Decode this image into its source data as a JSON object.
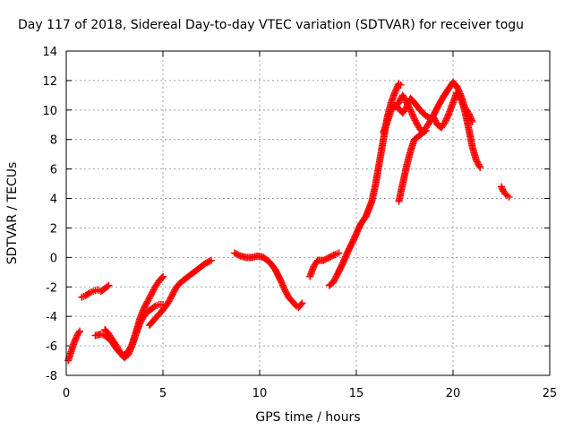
{
  "chart_data": {
    "type": "scatter",
    "title": "Day 117 of 2018, Sidereal Day-to-day VTEC variation (SDTVAR) for receiver togu",
    "xlabel": "GPS time / hours",
    "ylabel": "SDTVAR / TECUs",
    "xlim": [
      0,
      25
    ],
    "ylim": [
      -8,
      14
    ],
    "xticks": [
      "0",
      "5",
      "10",
      "15",
      "20",
      "25"
    ],
    "yticks": [
      "-8",
      "-6",
      "-4",
      "-2",
      "0",
      "2",
      "4",
      "6",
      "8",
      "10",
      "12",
      "14"
    ],
    "grid": true,
    "legend": "none",
    "marker": "+",
    "color": "#ff0000",
    "series": [
      {
        "x": [
          0.1,
          0.2,
          0.3,
          0.4,
          0.5,
          0.6,
          0.7
        ],
        "y": [
          -7.0,
          -6.6,
          -6.2,
          -5.8,
          -5.5,
          -5.2,
          -5.0
        ]
      },
      {
        "x": [
          0.8,
          1.0,
          1.2,
          1.4,
          1.6,
          1.8,
          2.0,
          2.2
        ],
        "y": [
          -2.7,
          -2.6,
          -2.4,
          -2.3,
          -2.2,
          -2.3,
          -2.1,
          -1.9
        ]
      },
      {
        "x": [
          1.5,
          1.8,
          2.0,
          2.2,
          2.4,
          2.6,
          2.8,
          3.0,
          3.2,
          3.4,
          3.6,
          3.8,
          4.0,
          4.2,
          4.4,
          4.6,
          4.8,
          5.0
        ],
        "y": [
          -5.3,
          -5.2,
          -5.3,
          -5.5,
          -5.8,
          -6.2,
          -6.5,
          -6.6,
          -6.4,
          -5.9,
          -5.1,
          -4.2,
          -3.5,
          -3.0,
          -2.5,
          -2.0,
          -1.6,
          -1.3
        ]
      },
      {
        "x": [
          2.0,
          2.2,
          2.4,
          2.6,
          2.8,
          3.0,
          3.2,
          3.4,
          3.6,
          3.8,
          4.0,
          4.2,
          4.4,
          4.6,
          4.8,
          5.0
        ],
        "y": [
          -4.9,
          -5.2,
          -5.6,
          -6.0,
          -6.5,
          -6.8,
          -6.6,
          -6.0,
          -5.2,
          -4.5,
          -4.0,
          -3.7,
          -3.5,
          -3.3,
          -3.2,
          -3.2
        ]
      },
      {
        "x": [
          4.3,
          4.5,
          4.7,
          4.9,
          5.1,
          5.3,
          5.5,
          5.7,
          6.0,
          6.3,
          6.6,
          6.9,
          7.2,
          7.5
        ],
        "y": [
          -4.6,
          -4.3,
          -4.0,
          -3.7,
          -3.4,
          -3.0,
          -2.5,
          -2.0,
          -1.6,
          -1.3,
          -1.0,
          -0.7,
          -0.4,
          -0.2
        ]
      },
      {
        "x": [
          8.7,
          9.0,
          9.3,
          9.6,
          9.9,
          10.2,
          10.5,
          10.8,
          11.1,
          11.3,
          11.5,
          11.7,
          11.9,
          12.0,
          12.2
        ],
        "y": [
          0.3,
          0.1,
          0.0,
          0.0,
          0.1,
          0.0,
          -0.3,
          -0.8,
          -1.6,
          -2.2,
          -2.7,
          -3.0,
          -3.3,
          -3.4,
          -3.1
        ]
      },
      {
        "x": [
          12.6,
          12.8,
          13.0,
          13.3,
          13.6,
          13.9,
          14.1
        ],
        "y": [
          -1.3,
          -0.6,
          -0.2,
          -0.2,
          0.0,
          0.2,
          0.3
        ]
      },
      {
        "x": [
          13.6,
          13.8,
          14.0,
          14.3,
          14.6,
          14.9,
          15.2,
          15.5,
          15.8,
          16.0,
          16.2,
          16.4,
          16.6,
          16.8,
          17.0,
          17.2,
          17.3
        ],
        "y": [
          -1.9,
          -1.7,
          -1.2,
          -0.4,
          0.5,
          1.3,
          2.2,
          2.8,
          3.8,
          5.0,
          6.5,
          8.0,
          9.5,
          10.5,
          11.2,
          11.8,
          11.7
        ]
      },
      {
        "x": [
          16.4,
          16.6,
          16.8,
          17.0,
          17.2,
          17.4,
          17.6,
          17.8,
          18.0,
          18.3,
          18.6,
          18.9,
          19.2,
          19.5,
          19.8,
          20.0,
          20.2,
          20.4,
          20.6,
          20.8,
          21.0
        ],
        "y": [
          8.5,
          9.2,
          10.0,
          10.3,
          10.1,
          9.8,
          10.2,
          10.8,
          10.5,
          10.0,
          9.6,
          9.4,
          10.2,
          10.9,
          11.5,
          11.9,
          11.6,
          11.0,
          10.2,
          9.8,
          9.2
        ]
      },
      {
        "x": [
          17.0,
          17.2,
          17.4,
          17.6,
          17.8,
          18.0,
          18.2,
          18.4,
          18.6,
          18.8,
          19.0,
          19.2,
          19.4,
          19.6,
          19.8,
          20.0,
          20.2,
          20.4,
          20.6,
          20.8,
          21.0,
          21.2,
          21.4
        ],
        "y": [
          10.2,
          10.5,
          11.0,
          10.5,
          10.0,
          9.4,
          8.9,
          8.5,
          8.8,
          9.2,
          9.5,
          9.0,
          8.8,
          9.2,
          9.8,
          10.5,
          11.2,
          10.8,
          10.0,
          8.8,
          7.5,
          6.6,
          6.1
        ]
      },
      {
        "x": [
          17.2,
          17.4,
          17.6,
          17.8,
          18.0,
          18.2,
          18.4,
          18.6
        ],
        "y": [
          3.8,
          5.0,
          6.2,
          7.2,
          8.0,
          8.2,
          8.4,
          8.6
        ]
      },
      {
        "x": [
          22.5,
          22.6,
          22.7,
          22.8,
          22.9
        ],
        "y": [
          4.8,
          4.5,
          4.3,
          4.2,
          4.1
        ]
      }
    ]
  }
}
